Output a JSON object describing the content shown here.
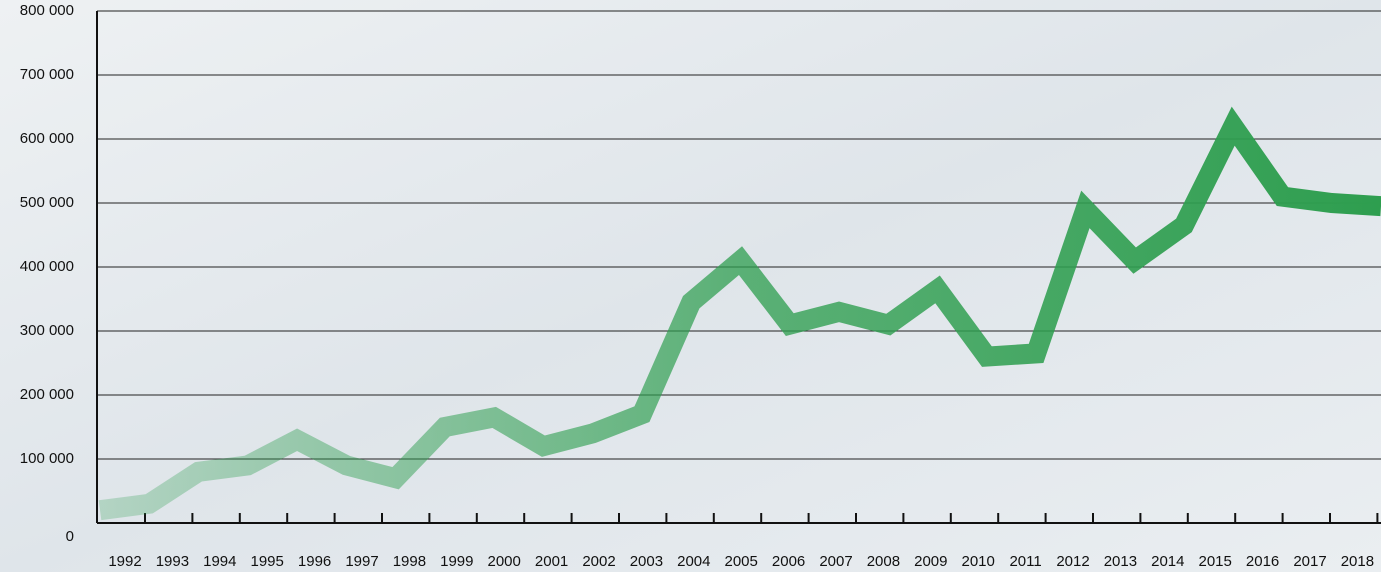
{
  "chart_data": {
    "type": "line",
    "categories": [
      "1992",
      "1993",
      "1994",
      "1995",
      "1996",
      "1997",
      "1998",
      "1999",
      "2000",
      "2001",
      "2002",
      "2003",
      "2004",
      "2005",
      "2006",
      "2007",
      "2008",
      "2009",
      "2010",
      "2011",
      "2012",
      "2013",
      "2014",
      "2015",
      "2016",
      "2017",
      "2018"
    ],
    "series": [
      {
        "color": "#2e9e4f",
        "values": [
          20000,
          30000,
          80000,
          90000,
          130000,
          90000,
          70000,
          150000,
          165000,
          120000,
          140000,
          170000,
          345000,
          410000,
          310000,
          330000,
          310000,
          365000,
          260000,
          265000,
          490000,
          410000,
          465000,
          620000,
          510000,
          500000,
          495000
        ]
      }
    ],
    "ylim": [
      0,
      800000
    ],
    "yticks": [
      0,
      {
        "value": 100000,
        "label": "100 000"
      },
      {
        "value": 200000,
        "label": "200 000"
      },
      {
        "value": 300000,
        "label": "300 000"
      },
      {
        "value": 400000,
        "label": "400 000"
      },
      {
        "value": 500000,
        "label": "500 000"
      },
      {
        "value": 600000,
        "label": "600 000"
      },
      {
        "value": 700000,
        "label": "700 000"
      },
      {
        "value": 800000,
        "label": "800 000"
      }
    ],
    "grid": true
  }
}
